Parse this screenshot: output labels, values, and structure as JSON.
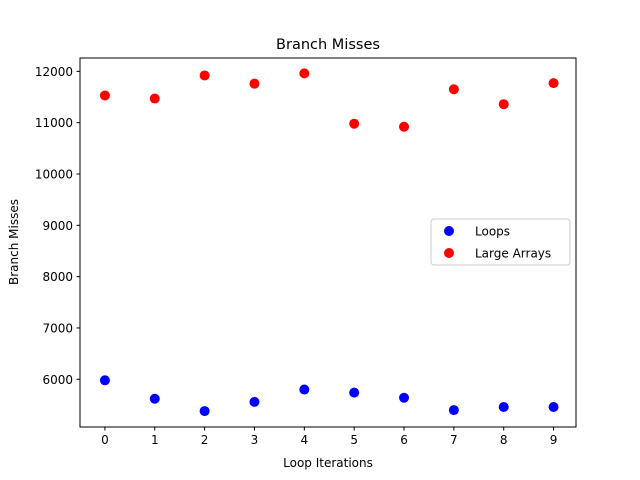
{
  "chart_data": {
    "type": "scatter",
    "title": "Branch Misses",
    "xlabel": "Loop Iterations",
    "ylabel": "Branch Misses",
    "x": [
      0,
      1,
      2,
      3,
      4,
      5,
      6,
      7,
      8,
      9
    ],
    "xticks": [
      "0",
      "1",
      "2",
      "3",
      "4",
      "5",
      "6",
      "7",
      "8",
      "9"
    ],
    "xlim": [
      -0.5,
      9.45
    ],
    "yticks": [
      "6000",
      "7000",
      "8000",
      "9000",
      "10000",
      "11000",
      "12000"
    ],
    "ytick_values": [
      6000,
      7000,
      8000,
      9000,
      10000,
      11000,
      12000
    ],
    "ylim": [
      5070,
      12260
    ],
    "grid": false,
    "legend_position": "center-right",
    "series": [
      {
        "name": "Loops",
        "color": "#0000ff",
        "values": [
          5980,
          5620,
          5380,
          5560,
          5800,
          5740,
          5640,
          5400,
          5460,
          5460
        ]
      },
      {
        "name": "Large Arrays",
        "color": "#ff0000",
        "values": [
          11530,
          11470,
          11920,
          11760,
          11960,
          10980,
          10920,
          11650,
          11360,
          11770
        ]
      }
    ]
  }
}
